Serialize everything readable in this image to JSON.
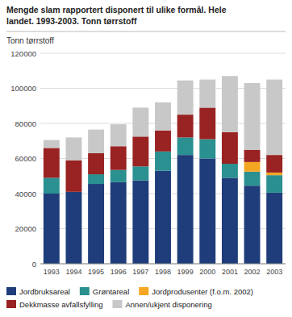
{
  "chart_data": {
    "type": "bar",
    "stacked": true,
    "title": "Mengde slam rapportert disponert til ulike formål. Hele\nlandet. 1993-2003. Tonn tørrstoff",
    "y_label": "Tonn tørrstoff",
    "categories": [
      "1993",
      "1994",
      "1995",
      "1996",
      "1997",
      "1998",
      "1999",
      "2000",
      "2001",
      "2002",
      "2003"
    ],
    "series": [
      {
        "name": "Jordbruksareal",
        "color": "#1f3d7a",
        "values": [
          40000,
          41000,
          45500,
          46500,
          47500,
          53000,
          62000,
          60000,
          49000,
          44500,
          40500
        ]
      },
      {
        "name": "Grøntareal",
        "color": "#2a9090",
        "values": [
          9000,
          0,
          5500,
          7000,
          8000,
          11000,
          10000,
          11000,
          8000,
          8000,
          10000
        ]
      },
      {
        "name": "Jordprodusenter (f.o.m. 2002)",
        "color": "#f5a623",
        "values": [
          0,
          0,
          0,
          0,
          0,
          0,
          0,
          0,
          0,
          5500,
          1500
        ]
      },
      {
        "name": "Dekkmasse avfallsfylling",
        "color": "#992222",
        "values": [
          17000,
          18000,
          12000,
          13500,
          17000,
          12000,
          13000,
          18000,
          18000,
          7000,
          10000
        ]
      },
      {
        "name": "Annen/ukjent disponering",
        "color": "#c8c8c8",
        "values": [
          4500,
          13000,
          13500,
          12500,
          16500,
          16000,
          19500,
          16000,
          32000,
          38000,
          43000
        ]
      }
    ],
    "ylim": [
      0,
      120000
    ],
    "yticks": [
      0,
      20000,
      40000,
      60000,
      80000,
      100000,
      120000
    ],
    "grid": true,
    "legend": "bottom"
  }
}
